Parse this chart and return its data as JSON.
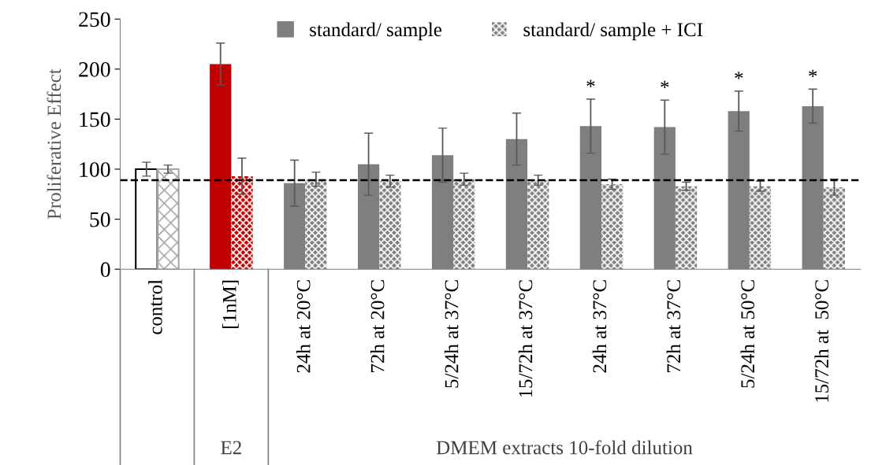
{
  "chart_data": {
    "type": "bar",
    "ylabel": "Proliferative Effect",
    "categories": [
      "control",
      "[1nM]",
      "24h at 20°C",
      "72h at 20°C",
      "5/24h at 37°C",
      "15/72h at 37°C",
      "24h at 37°C",
      "72h at 37°C",
      "5/24h at 50°C",
      "15/72h at  50°C"
    ],
    "series": [
      {
        "name": "standard/ sample",
        "color": "#7f7f7f",
        "colors": [
          "#ffffff",
          "#c00000",
          "#7f7f7f",
          "#7f7f7f",
          "#7f7f7f",
          "#7f7f7f",
          "#7f7f7f",
          "#7f7f7f",
          "#7f7f7f",
          "#7f7f7f"
        ],
        "values": [
          100,
          205,
          86,
          105,
          114,
          130,
          143,
          142,
          158,
          163
        ],
        "value_labels": [
          null,
          null,
          null,
          null,
          null,
          null,
          "*",
          "*",
          "*",
          "*"
        ],
        "errors": [
          7,
          21,
          23,
          31,
          27,
          26,
          27,
          27,
          20,
          17
        ]
      },
      {
        "name": "standard/ sample + ICI",
        "color": "#7f7f7f",
        "colors": [
          "#a6a6a6",
          "#c00000",
          "#7f7f7f",
          "#7f7f7f",
          "#7f7f7f",
          "#7f7f7f",
          "#7f7f7f",
          "#7f7f7f",
          "#7f7f7f",
          "#7f7f7f"
        ],
        "values": [
          100,
          93,
          90,
          88,
          90,
          89,
          85,
          83,
          83,
          82
        ],
        "errors": [
          4,
          18,
          7,
          6,
          6,
          5,
          5,
          4,
          5,
          8
        ]
      }
    ],
    "ylim": [
      0,
      250
    ],
    "yticks": [
      0,
      50,
      100,
      150,
      200,
      250
    ],
    "grid": false,
    "legend": "top",
    "ref_lines": [
      {
        "axis": "y",
        "value": 89,
        "line_style": "dashed",
        "color": "#000000"
      }
    ],
    "annotations": [
      "E2",
      "DMEM extracts 10-fold dilution"
    ]
  }
}
